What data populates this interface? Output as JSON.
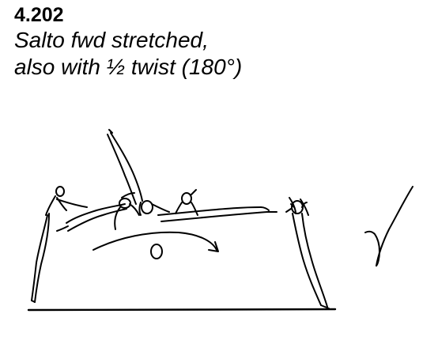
{
  "element": {
    "code": "4.202",
    "name_line1": "Salto fwd stretched,",
    "name_line2": "also with ½ twist (180°)"
  },
  "diagram": {
    "ink_color": "#000000",
    "background_color": "#ffffff",
    "value_symbol": "γ"
  }
}
